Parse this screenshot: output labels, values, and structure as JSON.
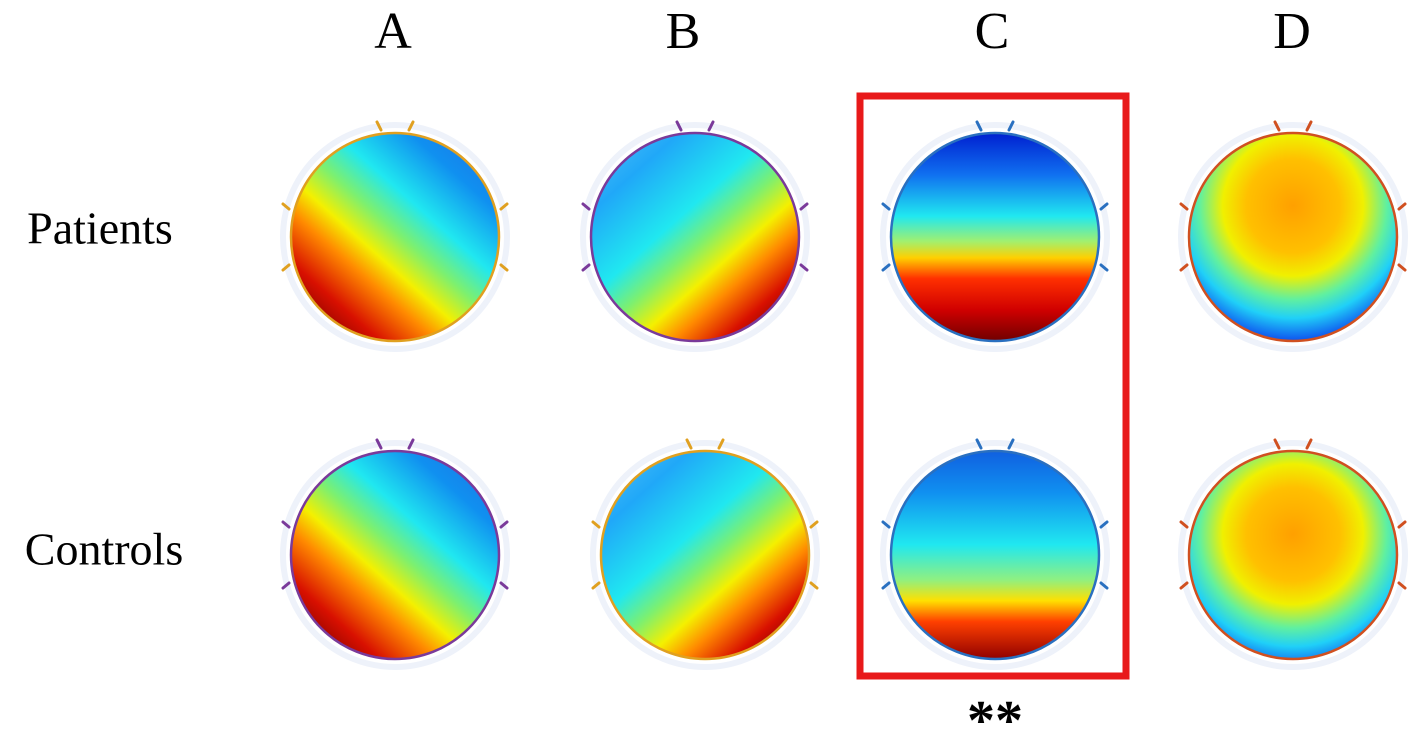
{
  "columns": [
    "A",
    "B",
    "C",
    "D"
  ],
  "rows": [
    "Patients",
    "Controls"
  ],
  "annotation": "**"
}
